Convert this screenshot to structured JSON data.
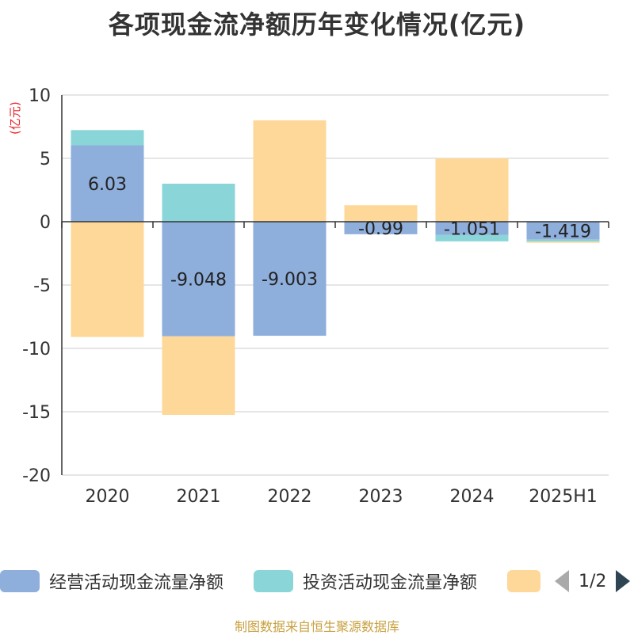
{
  "title": "各项现金流净额历年变化情况(亿元)",
  "unit_label": "(亿元)",
  "source": "制图数据来自恒生聚源数据库",
  "pager": {
    "label": "1/2"
  },
  "colors": {
    "operating": "#8eaedb",
    "investing": "#89d5d8",
    "financing": "#fdd899",
    "axis": "#333333",
    "grid": "#cccccc",
    "unit": "#e8262a"
  },
  "chart_data": {
    "type": "bar",
    "stacked": true,
    "categories": [
      "2020",
      "2021",
      "2022",
      "2023",
      "2024",
      "2025H1"
    ],
    "ylim": [
      -20,
      10
    ],
    "yticks": [
      10,
      5,
      0,
      -5,
      -10,
      -15,
      -20
    ],
    "grid": true,
    "legend_position": "bottom",
    "series": [
      {
        "name": "经营活动现金流量净额",
        "color": "#8eaedb",
        "values": [
          6.03,
          -9.048,
          -9.003,
          -0.99,
          -1.051,
          -1.419
        ],
        "labels": [
          "6.03",
          "-9.048",
          "-9.003",
          "-0.99",
          "-1.051",
          "-1.419"
        ]
      },
      {
        "name": "投资活动现金流量净额",
        "color": "#89d5d8",
        "values": [
          1.2,
          3.0,
          0.0,
          0.0,
          -0.5,
          -0.15
        ]
      },
      {
        "name": "",
        "color": "#fdd899",
        "values": [
          -9.1,
          -6.2,
          8.0,
          1.3,
          5.0,
          -0.1
        ]
      }
    ]
  }
}
